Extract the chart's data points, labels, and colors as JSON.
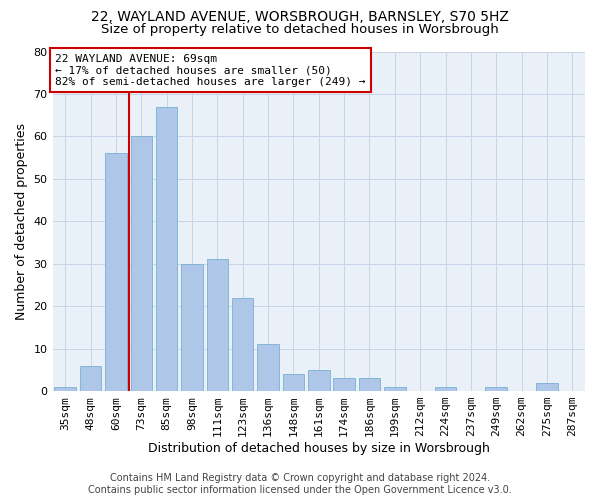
{
  "title_line1": "22, WAYLAND AVENUE, WORSBROUGH, BARNSLEY, S70 5HZ",
  "title_line2": "Size of property relative to detached houses in Worsbrough",
  "xlabel": "Distribution of detached houses by size in Worsbrough",
  "ylabel": "Number of detached properties",
  "categories": [
    "35sqm",
    "48sqm",
    "60sqm",
    "73sqm",
    "85sqm",
    "98sqm",
    "111sqm",
    "123sqm",
    "136sqm",
    "148sqm",
    "161sqm",
    "174sqm",
    "186sqm",
    "199sqm",
    "212sqm",
    "224sqm",
    "237sqm",
    "249sqm",
    "262sqm",
    "275sqm",
    "287sqm"
  ],
  "values": [
    1,
    6,
    56,
    60,
    67,
    30,
    31,
    22,
    11,
    4,
    5,
    3,
    3,
    1,
    0,
    1,
    0,
    1,
    0,
    2,
    0
  ],
  "bar_color": "#aec6e8",
  "bar_edge_color": "#7aafd4",
  "vline_x": 2.5,
  "vline_color": "#cc0000",
  "annotation_text": "22 WAYLAND AVENUE: 69sqm\n← 17% of detached houses are smaller (50)\n82% of semi-detached houses are larger (249) →",
  "annotation_box_color": "#ffffff",
  "annotation_box_edge": "#cc0000",
  "ylim": [
    0,
    80
  ],
  "yticks": [
    0,
    10,
    20,
    30,
    40,
    50,
    60,
    70,
    80
  ],
  "footer_line1": "Contains HM Land Registry data © Crown copyright and database right 2024.",
  "footer_line2": "Contains public sector information licensed under the Open Government Licence v3.0.",
  "grid_color": "#c8d4e8",
  "background_color": "#eaf0f8",
  "title_fontsize": 10,
  "subtitle_fontsize": 9.5,
  "axis_label_fontsize": 9,
  "tick_fontsize": 8,
  "annotation_fontsize": 8,
  "footer_fontsize": 7
}
